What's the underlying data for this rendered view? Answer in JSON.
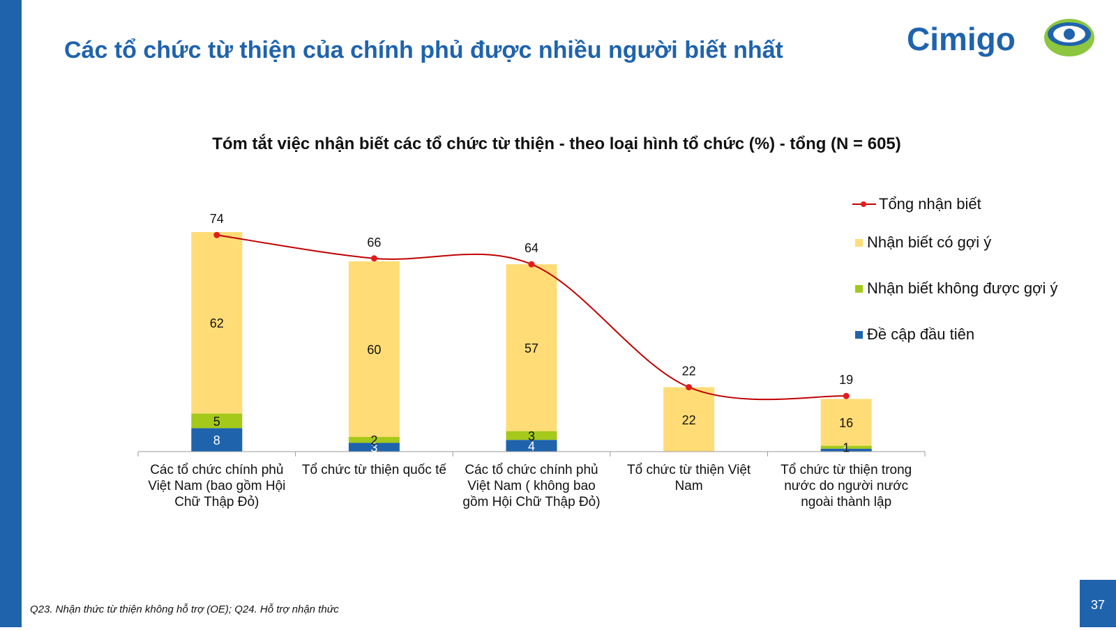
{
  "slide": {
    "title": "Các tổ chức từ thiện của chính phủ được nhiều người biết nhất",
    "logo_text": "Cimigo",
    "footnote": "Q23. Nhận thức từ thiện không hỗ trợ (OE); Q24. Hỗ trợ nhận thức",
    "page_number": "37"
  },
  "colors": {
    "brand_blue": "#1f63ad",
    "logo_green": "#8dc63f",
    "line_red": "#c00000",
    "point_red": "#e31b1b"
  },
  "chart_data": {
    "type": "bar",
    "stacked": true,
    "title": "Tóm tắt việc nhận biết các tổ chức từ thiện - theo loại hình tổ chức (%) - tổng (N = 605)",
    "categories": [
      [
        "Các tổ chức chính phủ",
        "Việt Nam (bao gồm Hội",
        "Chữ Thập Đỏ)"
      ],
      [
        "Tổ chức từ thiện quốc tế"
      ],
      [
        "Các tổ chức chính phủ",
        "Việt Nam ( không bao",
        "gồm Hội Chữ Thập Đỏ)"
      ],
      [
        "Tổ chức từ thiện Việt",
        "Nam"
      ],
      [
        "Tổ chức từ thiện trong",
        "nước do người nước",
        "ngoài thành lập"
      ]
    ],
    "series": [
      {
        "name": "Đề cập đầu tiên",
        "color": "#1f63ad",
        "values": [
          8,
          3,
          4,
          0,
          1
        ]
      },
      {
        "name": "Nhận biết không được gợi ý",
        "color": "#a4c91a",
        "values": [
          5,
          2,
          3,
          0,
          1
        ]
      },
      {
        "name": "Nhận biết có gợi ý",
        "color": "#ffdc76",
        "values": [
          62,
          60,
          57,
          22,
          16
        ]
      }
    ],
    "line": {
      "name": "Tổng nhận biết",
      "color": "#c00000",
      "marker_color": "#e31b1b",
      "values": [
        74,
        66,
        64,
        22,
        19
      ]
    },
    "legend_order": [
      "Tổng nhận biết",
      "Nhận biết có gợi ý",
      "Nhận biết không được gợi ý",
      "Đề cập đầu tiên"
    ],
    "legend_position": "right",
    "grid": false,
    "ylim": [
      0,
      80
    ]
  }
}
